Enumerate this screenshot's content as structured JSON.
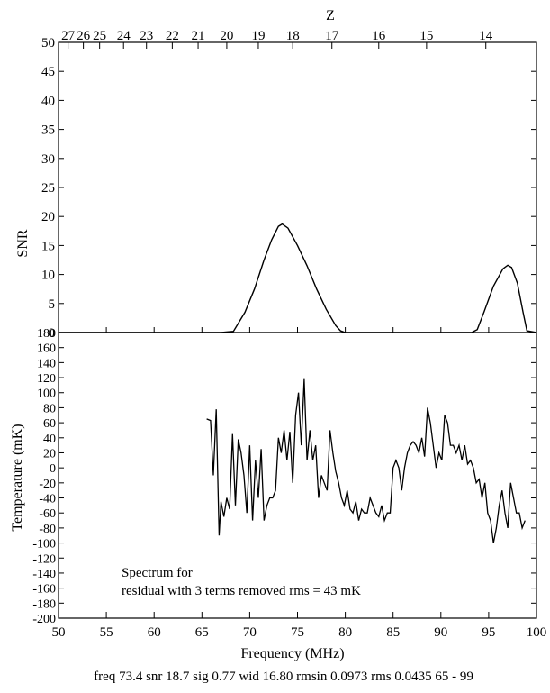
{
  "chart_data": {
    "top_axis": {
      "label": "Z",
      "ticks": [
        {
          "z": 27,
          "f": 51.0
        },
        {
          "z": 26,
          "f": 52.6
        },
        {
          "z": 25,
          "f": 54.3
        },
        {
          "z": 24,
          "f": 56.8
        },
        {
          "z": 23,
          "f": 59.2
        },
        {
          "z": 22,
          "f": 61.9
        },
        {
          "z": 21,
          "f": 64.6
        },
        {
          "z": 20,
          "f": 67.6
        },
        {
          "z": 19,
          "f": 70.9
        },
        {
          "z": 18,
          "f": 74.5
        },
        {
          "z": 17,
          "f": 78.6
        },
        {
          "z": 16,
          "f": 83.5
        },
        {
          "z": 15,
          "f": 88.5
        },
        {
          "z": 14,
          "f": 94.7
        }
      ]
    },
    "snr_panel": {
      "type": "line",
      "ylabel": "SNR",
      "xlim": [
        50,
        100
      ],
      "ylim": [
        0,
        50
      ],
      "yticks": [
        0,
        5,
        10,
        15,
        20,
        25,
        30,
        35,
        40,
        45,
        50
      ],
      "x": [
        50,
        65.5,
        67.0,
        68.3,
        69.5,
        70.5,
        71.5,
        72.3,
        73.0,
        73.4,
        74.0,
        75.0,
        76.0,
        77.0,
        78.0,
        79.0,
        79.5,
        80.0,
        81.0,
        90,
        93.2,
        93.8,
        94.5,
        95.5,
        96.5,
        97.0,
        97.4,
        98.0,
        98.6,
        99.0,
        100
      ],
      "y": [
        0,
        0,
        0,
        0.2,
        3.5,
        7.5,
        12.5,
        16.0,
        18.3,
        18.7,
        18.0,
        15.0,
        11.5,
        7.5,
        4.0,
        1.2,
        0.3,
        0,
        0,
        0,
        0,
        0.5,
        3.5,
        8.0,
        11.0,
        11.6,
        11.2,
        8.5,
        3.5,
        0.3,
        0
      ]
    },
    "temp_panel": {
      "type": "line",
      "ylabel": "Temperature (mK)",
      "xlabel": "Frequency (MHz)",
      "xlim": [
        50,
        100
      ],
      "ylim": [
        -200,
        180
      ],
      "yticks": [
        180,
        160,
        140,
        120,
        100,
        80,
        60,
        40,
        20,
        0,
        -20,
        -40,
        -60,
        -80,
        -100,
        -120,
        -140,
        -160,
        -180,
        -200
      ],
      "xticks": [
        50,
        55,
        60,
        65,
        70,
        75,
        80,
        85,
        90,
        95,
        100
      ],
      "x": [
        65.5,
        65.9,
        66.2,
        66.5,
        66.8,
        67.0,
        67.3,
        67.6,
        67.9,
        68.2,
        68.5,
        68.8,
        69.1,
        69.4,
        69.7,
        70.0,
        70.3,
        70.6,
        70.9,
        71.2,
        71.5,
        71.8,
        72.1,
        72.4,
        72.7,
        73.0,
        73.3,
        73.6,
        73.9,
        74.2,
        74.5,
        74.8,
        75.1,
        75.4,
        75.7,
        76.0,
        76.3,
        76.6,
        76.9,
        77.2,
        77.5,
        77.8,
        78.1,
        78.4,
        78.7,
        79.0,
        79.3,
        79.6,
        79.9,
        80.2,
        80.5,
        80.8,
        81.1,
        81.4,
        81.7,
        82.0,
        82.3,
        82.6,
        82.9,
        83.2,
        83.5,
        83.8,
        84.1,
        84.4,
        84.7,
        85.0,
        85.3,
        85.6,
        85.9,
        86.2,
        86.5,
        86.8,
        87.1,
        87.4,
        87.7,
        88.0,
        88.3,
        88.6,
        88.9,
        89.2,
        89.5,
        89.8,
        90.1,
        90.4,
        90.7,
        91.0,
        91.3,
        91.6,
        91.9,
        92.2,
        92.5,
        92.8,
        93.1,
        93.4,
        93.7,
        94.0,
        94.3,
        94.6,
        94.9,
        95.2,
        95.5,
        95.8,
        96.1,
        96.4,
        96.7,
        97.0,
        97.3,
        97.6,
        97.9,
        98.2,
        98.5,
        98.8
      ],
      "y": [
        65,
        63,
        -10,
        78,
        -90,
        -45,
        -65,
        -40,
        -55,
        45,
        -50,
        38,
        20,
        -10,
        -60,
        30,
        -70,
        10,
        -40,
        25,
        -70,
        -50,
        -40,
        -40,
        -30,
        40,
        20,
        50,
        10,
        48,
        -20,
        70,
        100,
        30,
        118,
        10,
        50,
        10,
        30,
        -40,
        -10,
        -20,
        -30,
        50,
        20,
        -5,
        -20,
        -40,
        -50,
        -30,
        -55,
        -60,
        -45,
        -70,
        -55,
        -60,
        -60,
        -40,
        -50,
        -60,
        -65,
        -50,
        -70,
        -60,
        -60,
        0,
        10,
        0,
        -30,
        0,
        20,
        30,
        35,
        30,
        20,
        40,
        15,
        80,
        60,
        30,
        0,
        20,
        10,
        70,
        60,
        30,
        30,
        20,
        30,
        10,
        30,
        5,
        10,
        0,
        -20,
        -15,
        -40,
        -20,
        -60,
        -70,
        -100,
        -80,
        -50,
        -30,
        -60,
        -80,
        -20,
        -40,
        -60,
        -60,
        -80,
        -70
      ],
      "annotation_line1": "Spectrum for",
      "annotation_line2": "residual with 3 terms removed rms =  43 mK"
    },
    "footer": "freq 73.4 snr 18.7 sig 0.77 wid 16.80 rmsin 0.0973 rms 0.0435 65 - 99"
  }
}
